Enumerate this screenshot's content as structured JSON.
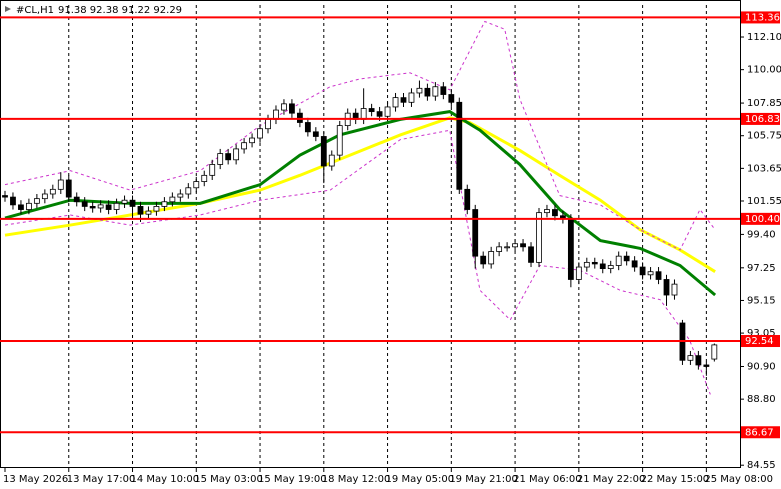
{
  "chart_data": {
    "type": "candlestick",
    "header": {
      "symbol": "#CL,H1",
      "ohlc": "91.38 92.38 91.22 92.29"
    },
    "categories": [
      "13 May 2026",
      null,
      null,
      null,
      null,
      null,
      null,
      null,
      "13 May 17:00",
      null,
      null,
      null,
      null,
      null,
      null,
      null,
      "14 May 10:00",
      null,
      null,
      null,
      null,
      null,
      null,
      null,
      "15 May 03:00",
      null,
      null,
      null,
      null,
      null,
      null,
      null,
      "15 May 19:00",
      null,
      null,
      null,
      null,
      null,
      null,
      null,
      "18 May 12:00",
      null,
      null,
      null,
      null,
      null,
      null,
      null,
      "19 May 05:00",
      null,
      null,
      null,
      null,
      null,
      null,
      null,
      "19 May 21:00",
      null,
      null,
      null,
      null,
      null,
      null,
      null,
      "21 May 06:00",
      null,
      null,
      null,
      null,
      null,
      null,
      null,
      "21 May 22:00",
      null,
      null,
      null,
      null,
      null,
      null,
      null,
      "22 May 15:00",
      null,
      null,
      null,
      null,
      null,
      null,
      null,
      "25 May 08:00",
      null
    ],
    "open": [
      101.9,
      101.8,
      101.3,
      101.0,
      101.4,
      101.7,
      102.0,
      102.3,
      102.9,
      101.8,
      101.5,
      101.2,
      101.1,
      101.3,
      101.0,
      101.4,
      101.6,
      101.2,
      100.7,
      100.9,
      101.2,
      101.5,
      101.8,
      102.0,
      102.4,
      102.8,
      103.2,
      103.9,
      104.6,
      104.2,
      104.9,
      105.3,
      105.6,
      106.2,
      106.8,
      107.4,
      107.8,
      107.2,
      106.6,
      106.0,
      105.7,
      103.8,
      104.5,
      106.4,
      107.2,
      106.8,
      107.5,
      107.3,
      107.0,
      107.6,
      108.2,
      107.9,
      108.5,
      108.8,
      108.3,
      108.9,
      108.4,
      107.9,
      102.3,
      101.0,
      98.0,
      97.5,
      98.3,
      98.6,
      98.6,
      98.8,
      98.6,
      97.6,
      100.8,
      101.0,
      100.6,
      100.4,
      96.5,
      97.3,
      97.6,
      97.5,
      97.2,
      97.4,
      98.0,
      97.7,
      97.3,
      96.8,
      97.0,
      96.5,
      95.5,
      93.7,
      91.3,
      91.6,
      91.0,
      91.38
    ],
    "high": [
      102.2,
      102.1,
      101.6,
      101.7,
      102.0,
      102.3,
      102.6,
      103.4,
      103.2,
      102.1,
      101.8,
      101.5,
      101.6,
      101.6,
      101.7,
      101.9,
      101.9,
      101.5,
      101.2,
      101.5,
      101.8,
      102.1,
      102.3,
      102.7,
      103.1,
      103.5,
      104.2,
      104.9,
      104.9,
      105.2,
      105.6,
      105.9,
      106.5,
      107.1,
      107.7,
      108.1,
      108.1,
      107.5,
      106.9,
      106.3,
      106.0,
      104.8,
      106.7,
      107.5,
      107.5,
      108.8,
      107.8,
      107.6,
      107.9,
      108.5,
      108.5,
      108.8,
      109.3,
      109.1,
      109.2,
      109.2,
      108.7,
      108.2,
      102.6,
      101.3,
      98.3,
      98.6,
      98.9,
      98.9,
      99.1,
      99.1,
      98.9,
      101.1,
      101.3,
      101.3,
      100.9,
      100.7,
      97.6,
      97.9,
      97.9,
      97.8,
      97.7,
      98.3,
      98.3,
      98.0,
      97.6,
      97.3,
      97.3,
      96.8,
      96.5,
      93.9,
      91.9,
      91.9,
      91.2,
      92.38
    ],
    "low": [
      101.5,
      101.0,
      100.7,
      100.7,
      101.1,
      101.4,
      101.7,
      102.0,
      101.5,
      101.2,
      100.9,
      100.8,
      100.8,
      100.7,
      100.7,
      101.1,
      100.4,
      100.2,
      100.4,
      100.6,
      100.9,
      101.2,
      101.5,
      101.7,
      102.1,
      102.5,
      102.9,
      103.6,
      103.9,
      103.9,
      104.6,
      105.0,
      105.3,
      105.9,
      106.5,
      107.1,
      106.9,
      106.3,
      105.7,
      105.4,
      102.7,
      103.5,
      104.2,
      106.1,
      106.5,
      106.5,
      107.0,
      106.7,
      106.7,
      107.3,
      107.6,
      107.6,
      108.2,
      108.0,
      108.0,
      108.1,
      107.6,
      102.0,
      100.7,
      97.2,
      97.2,
      97.2,
      98.0,
      98.3,
      98.3,
      98.3,
      97.3,
      97.3,
      100.5,
      100.3,
      100.1,
      96.0,
      96.2,
      97.0,
      97.2,
      96.9,
      96.9,
      97.1,
      97.4,
      97.0,
      96.5,
      96.5,
      96.2,
      94.8,
      95.2,
      91.0,
      91.0,
      90.7,
      90.3,
      91.22
    ],
    "close": [
      101.8,
      101.3,
      101.0,
      101.4,
      101.7,
      102.0,
      102.3,
      102.9,
      101.8,
      101.5,
      101.2,
      101.1,
      101.3,
      101.0,
      101.4,
      101.6,
      101.2,
      100.7,
      100.9,
      101.2,
      101.5,
      101.8,
      102.0,
      102.4,
      102.8,
      103.2,
      103.9,
      104.6,
      104.2,
      104.9,
      105.3,
      105.6,
      106.2,
      106.8,
      107.4,
      107.8,
      107.2,
      106.6,
      106.0,
      105.7,
      103.8,
      104.5,
      106.4,
      107.2,
      106.8,
      107.5,
      107.3,
      107.0,
      107.6,
      108.2,
      107.9,
      108.5,
      108.8,
      108.3,
      108.9,
      108.4,
      107.9,
      102.3,
      101.0,
      98.0,
      97.5,
      98.3,
      98.6,
      98.6,
      98.8,
      98.6,
      97.6,
      100.8,
      101.0,
      100.6,
      100.4,
      96.5,
      97.3,
      97.6,
      97.5,
      97.2,
      97.4,
      98.0,
      97.7,
      97.3,
      96.8,
      97.0,
      96.5,
      95.5,
      96.2,
      91.3,
      91.6,
      91.0,
      90.9,
      92.29
    ],
    "overlays": [
      {
        "color": "#ffff00",
        "style": "solid",
        "width": 3,
        "x": [
          0,
          8.2,
          15.7,
          24.5,
          32,
          37,
          43.3,
          49.6,
          55.8,
          58.3,
          64.6,
          69.6,
          74.7,
          79.7,
          84.7,
          89.1
        ],
        "values": [
          99.35,
          100.0,
          100.65,
          101.4,
          102.25,
          103.2,
          104.5,
          105.8,
          106.9,
          106.6,
          104.8,
          103.2,
          101.6,
          99.7,
          98.4,
          97.0
        ]
      },
      {
        "color": "#008000",
        "style": "solid",
        "width": 3,
        "x": [
          0,
          8.2,
          15.7,
          24.5,
          32,
          37,
          42,
          49.6,
          55.8,
          59.6,
          64.6,
          69.6,
          74.7,
          79.7,
          84.7,
          89.1
        ],
        "values": [
          100.45,
          101.6,
          101.4,
          101.4,
          102.6,
          104.5,
          105.8,
          106.8,
          107.3,
          106.1,
          103.9,
          101.0,
          99.0,
          98.5,
          97.4,
          95.5
        ]
      },
      {
        "color": "#cc33cc",
        "style": "dashed",
        "width": 1,
        "x": [
          0,
          8.2,
          15.7,
          24.5,
          32,
          40.8,
          44.5,
          50.8,
          55.8,
          60.2,
          62.7,
          64.6,
          69.6,
          74.7,
          79.7,
          84.7,
          87.2,
          89.1
        ],
        "values": [
          102.6,
          103.5,
          102.25,
          103.5,
          106.4,
          108.9,
          109.4,
          109.8,
          108.7,
          113.1,
          112.6,
          108.1,
          101.9,
          101.3,
          99.7,
          98.4,
          101.0,
          99.7
        ]
      },
      {
        "color": "#cc33cc",
        "style": "dashed",
        "width": 1,
        "x": [
          0,
          8.2,
          15.7,
          24.5,
          32,
          40.8,
          49.6,
          55.8,
          59.6,
          63.4,
          67.1,
          72.1,
          77.2,
          82.2,
          85.9,
          88.5
        ],
        "values": [
          100.0,
          100.65,
          100.0,
          100.65,
          101.6,
          102.25,
          105.5,
          106.1,
          95.8,
          93.9,
          97.4,
          97.1,
          95.8,
          95.2,
          92.6,
          89.1
        ]
      }
    ],
    "levels": [
      113.36,
      106.83,
      {
        "value": 100.4,
        "label": "100.40"
      },
      92.54,
      86.67
    ],
    "level_color": "#ff0000",
    "ylim": [
      84.37,
      114.16
    ],
    "yticks": [
      {
        "value": 112.1,
        "label": "112.10"
      },
      {
        "value": 110,
        "label": "110.00"
      },
      107.85,
      105.75,
      103.65,
      101.55,
      {
        "value": 99.4,
        "label": "99.40"
      },
      97.25,
      95.15,
      93.05,
      {
        "value": 90.9,
        "label": "90.90"
      },
      {
        "value": 88.8,
        "label": "88.80"
      },
      84.55
    ],
    "up_color": "#ffffff",
    "down_color": "#000000"
  }
}
